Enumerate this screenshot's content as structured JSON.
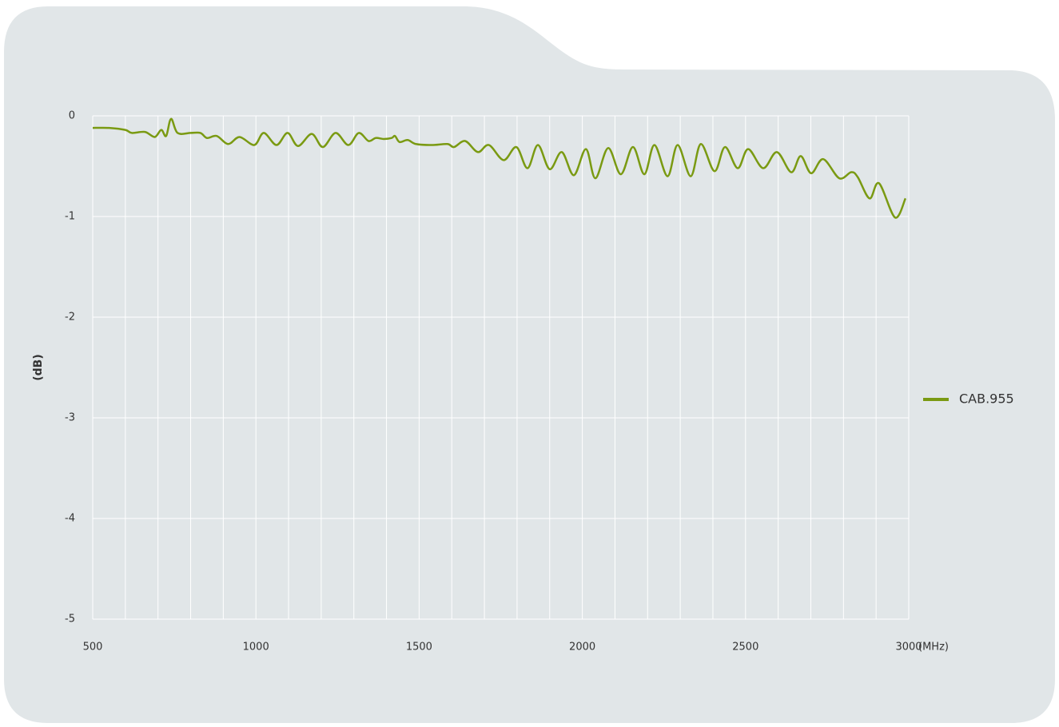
{
  "chart_data": {
    "type": "line",
    "y_label": "(dB)",
    "x_unit": "(MHz)",
    "xlim": [
      500,
      3000
    ],
    "ylim": [
      -5,
      0
    ],
    "xticks": [
      500,
      1000,
      1500,
      2000,
      2500,
      3000
    ],
    "yticks": [
      0,
      -1,
      -2,
      -3,
      -4,
      -5
    ],
    "xgrid": [
      600,
      700,
      800,
      900,
      1100,
      1200,
      1300,
      1400,
      1600,
      1700,
      1800,
      1900,
      2100,
      2200,
      2300,
      2400,
      2600,
      2700,
      2800,
      2900
    ],
    "grid": true,
    "legend": "right",
    "x": [
      500,
      550,
      600,
      620,
      660,
      690,
      710,
      725,
      740,
      760,
      800,
      830,
      850,
      880,
      915,
      950,
      995,
      1024,
      1063,
      1097,
      1129,
      1171,
      1205,
      1244,
      1283,
      1315,
      1345,
      1367,
      1392,
      1416,
      1426,
      1440,
      1465,
      1490,
      1538,
      1587,
      1607,
      1641,
      1680,
      1714,
      1759,
      1798,
      1832,
      1864,
      1900,
      1937,
      1974,
      2011,
      2040,
      2079,
      2118,
      2155,
      2190,
      2221,
      2261,
      2292,
      2332,
      2363,
      2405,
      2437,
      2476,
      2508,
      2554,
      2596,
      2640,
      2669,
      2701,
      2738,
      2787,
      2824,
      2844,
      2880,
      2909,
      2958,
      2990
    ],
    "series": [
      {
        "name": "CAB.955",
        "color": "#7a9a12",
        "values": [
          -0.12,
          -0.12,
          -0.14,
          -0.17,
          -0.16,
          -0.21,
          -0.14,
          -0.2,
          -0.03,
          -0.17,
          -0.17,
          -0.17,
          -0.22,
          -0.2,
          -0.28,
          -0.21,
          -0.29,
          -0.17,
          -0.29,
          -0.17,
          -0.3,
          -0.18,
          -0.31,
          -0.17,
          -0.29,
          -0.17,
          -0.25,
          -0.22,
          -0.23,
          -0.22,
          -0.2,
          -0.26,
          -0.24,
          -0.28,
          -0.29,
          -0.28,
          -0.31,
          -0.25,
          -0.36,
          -0.29,
          -0.44,
          -0.31,
          -0.52,
          -0.29,
          -0.53,
          -0.36,
          -0.59,
          -0.33,
          -0.62,
          -0.32,
          -0.58,
          -0.31,
          -0.58,
          -0.29,
          -0.6,
          -0.29,
          -0.6,
          -0.28,
          -0.55,
          -0.31,
          -0.52,
          -0.33,
          -0.52,
          -0.36,
          -0.56,
          -0.4,
          -0.57,
          -0.43,
          -0.62,
          -0.56,
          -0.61,
          -0.82,
          -0.67,
          -1.01,
          -0.82
        ]
      }
    ]
  }
}
